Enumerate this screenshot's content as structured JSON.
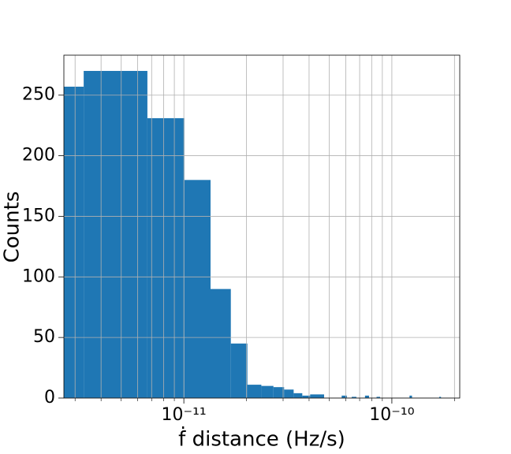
{
  "chart_data": {
    "type": "histogram",
    "xlabel": "ḟ distance (Hz/s)",
    "ylabel": "Counts",
    "bins": [
      2e-12,
      3.3e-12,
      6.68e-12,
      1.006e-11,
      1.344e-11,
      1.682e-11,
      2.02e-11,
      2.358e-11,
      2.696e-11,
      3.034e-11,
      3.372e-11,
      3.71e-11,
      4.048e-11,
      4.386e-11,
      4.724e-11,
      5.062e-11,
      5.4e-11,
      5.738e-11,
      6.076e-11,
      6.414e-11,
      6.752e-11,
      7.09e-11,
      7.428e-11,
      7.766e-11,
      8.104e-11,
      8.442e-11,
      8.78e-11,
      9.118e-11,
      9.456e-11,
      9.794e-11,
      1.0132e-10,
      1.047e-10,
      1.0808e-10,
      1.1146e-10,
      1.1484e-10,
      1.1822e-10,
      1.216e-10,
      1.2498e-10,
      1.2836e-10,
      1.3174e-10,
      1.3512e-10,
      1.385e-10,
      1.4188e-10,
      1.4526e-10,
      1.4864e-10,
      1.5202e-10,
      1.554e-10,
      1.5878e-10,
      1.6216e-10,
      1.6554e-10,
      1.6892e-10,
      1.723e-10
    ],
    "values": [
      257,
      270,
      231,
      180,
      90,
      45,
      11,
      10,
      9,
      7,
      4,
      2,
      3,
      3,
      0,
      0,
      0,
      2,
      0,
      1,
      0,
      0,
      2,
      0,
      0,
      1,
      0,
      0,
      0,
      0,
      0,
      0,
      0,
      0,
      0,
      0,
      2,
      0,
      0,
      0,
      0,
      0,
      0,
      0,
      0,
      0,
      0,
      0,
      0,
      0,
      1
    ],
    "color": "#1f77b4",
    "xscale": "log",
    "xlim": [
      2.65e-12,
      2.12e-10
    ],
    "ylim": [
      0,
      283
    ],
    "xticks": [
      {
        "value": 1e-11,
        "label": "10⁻¹¹"
      },
      {
        "value": 1e-10,
        "label": "10⁻¹⁰"
      }
    ],
    "xminorticks": [
      3e-12,
      4e-12,
      5e-12,
      6e-12,
      7e-12,
      8e-12,
      9e-12,
      2e-11,
      3e-11,
      4e-11,
      5e-11,
      6e-11,
      7e-11,
      8e-11,
      9e-11,
      2e-10
    ],
    "yticks": [
      0,
      50,
      100,
      150,
      200,
      250
    ],
    "grid": true
  }
}
